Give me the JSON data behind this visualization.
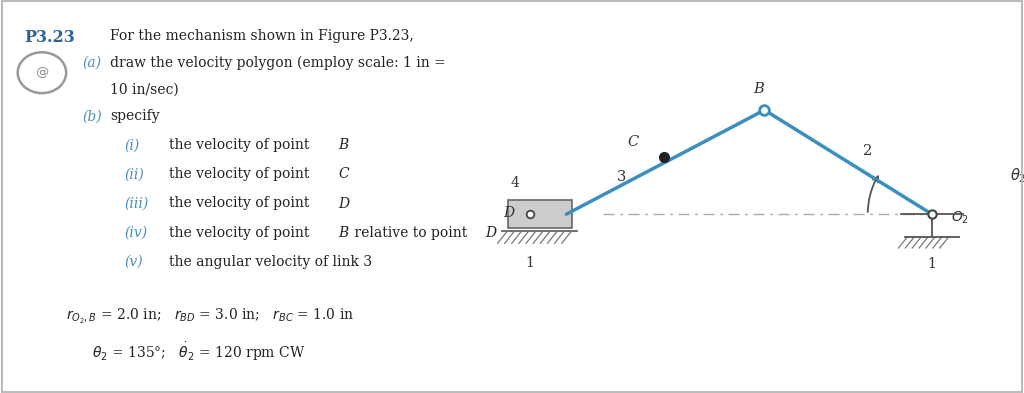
{
  "bg_color": "#ffffff",
  "border_color": "#cccccc",
  "link_color": "#3a8fbf",
  "text_color": "#333333",
  "title_color": "#2a6496",
  "sub_color": "#4a90b8",
  "O2": [
    0.835,
    0.455
  ],
  "B": [
    0.535,
    0.72
  ],
  "D": [
    0.115,
    0.455
  ],
  "C": [
    0.355,
    0.6
  ]
}
